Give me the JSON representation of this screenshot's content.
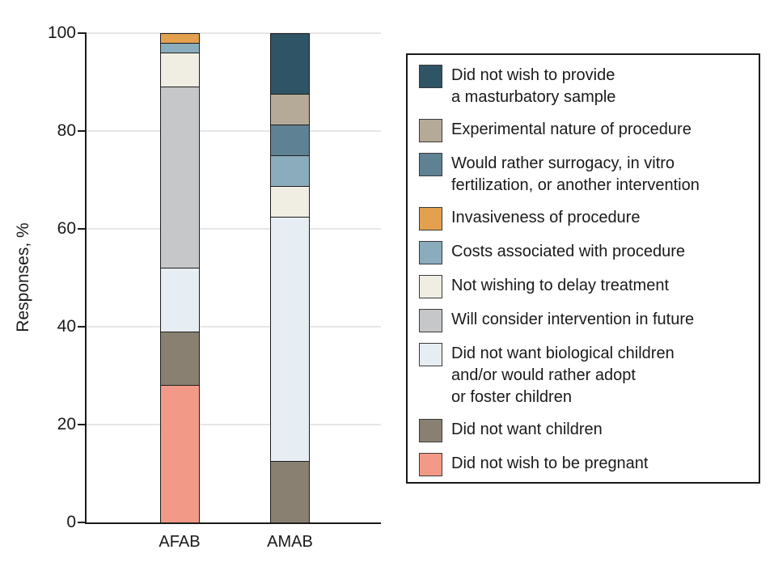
{
  "colors": {
    "navy": "#2E5465",
    "tan": "#B4AA97",
    "steel_dark": "#5E8294",
    "orange": "#E3A04F",
    "steel_light": "#8AACBD",
    "cream": "#F0EEE3",
    "gray": "#C6C7C9",
    "pale_blue": "#E6EEF3",
    "taupe": "#8A8071",
    "salmon": "#F39988"
  },
  "chart_data": {
    "type": "bar",
    "stacked": true,
    "title": "",
    "xlabel": "",
    "ylabel": "Responses, %",
    "ylim": [
      0,
      100
    ],
    "yticks": [
      0,
      20,
      40,
      60,
      80,
      100
    ],
    "grid": "horizontal",
    "legend_position": "right",
    "categories": [
      "AFAB",
      "AMAB"
    ],
    "stack_order": "series are listed top-of-bar first; bars stack bottom-up in reverse order",
    "series": [
      {
        "name": "Did not wish to provide a masturbatory sample",
        "color_id": "navy",
        "values": [
          0,
          12.5
        ]
      },
      {
        "name": "Experimental nature of procedure",
        "color_id": "tan",
        "values": [
          0,
          6.25
        ]
      },
      {
        "name": "Would rather surrogacy, in vitro fertilization, or another intervention",
        "color_id": "steel_dark",
        "values": [
          0,
          6.25
        ]
      },
      {
        "name": "Invasiveness of procedure",
        "color_id": "orange",
        "values": [
          2,
          0
        ]
      },
      {
        "name": "Costs associated with procedure",
        "color_id": "steel_light",
        "values": [
          2,
          6.25
        ]
      },
      {
        "name": "Not wishing to delay treatment",
        "color_id": "cream",
        "values": [
          7,
          6.25
        ]
      },
      {
        "name": "Will consider intervention in future",
        "color_id": "gray",
        "values": [
          37,
          0
        ]
      },
      {
        "name": "Did not want biological children and/or would rather adopt or foster children",
        "color_id": "pale_blue",
        "values": [
          13,
          50
        ]
      },
      {
        "name": "Did not want children",
        "color_id": "taupe",
        "values": [
          11,
          12.5
        ]
      },
      {
        "name": "Did not wish to be pregnant",
        "color_id": "salmon",
        "values": [
          28,
          0
        ]
      }
    ]
  },
  "legend": {
    "items": [
      {
        "label": "Did not wish to provide\na masturbatory sample",
        "color_id": "navy"
      },
      {
        "label": "Experimental nature of procedure",
        "color_id": "tan"
      },
      {
        "label": "Would rather surrogacy, in vitro\nfertilization, or another intervention",
        "color_id": "steel_dark"
      },
      {
        "label": "Invasiveness of procedure",
        "color_id": "orange"
      },
      {
        "label": "Costs associated with procedure",
        "color_id": "steel_light"
      },
      {
        "label": "Not wishing to delay treatment",
        "color_id": "cream"
      },
      {
        "label": "Will consider intervention in future",
        "color_id": "gray"
      },
      {
        "label": "Did not want biological children\nand/or would rather adopt\nor foster children",
        "color_id": "pale_blue"
      },
      {
        "label": "Did not want children",
        "color_id": "taupe"
      },
      {
        "label": "Did not wish to be pregnant",
        "color_id": "salmon"
      }
    ]
  }
}
